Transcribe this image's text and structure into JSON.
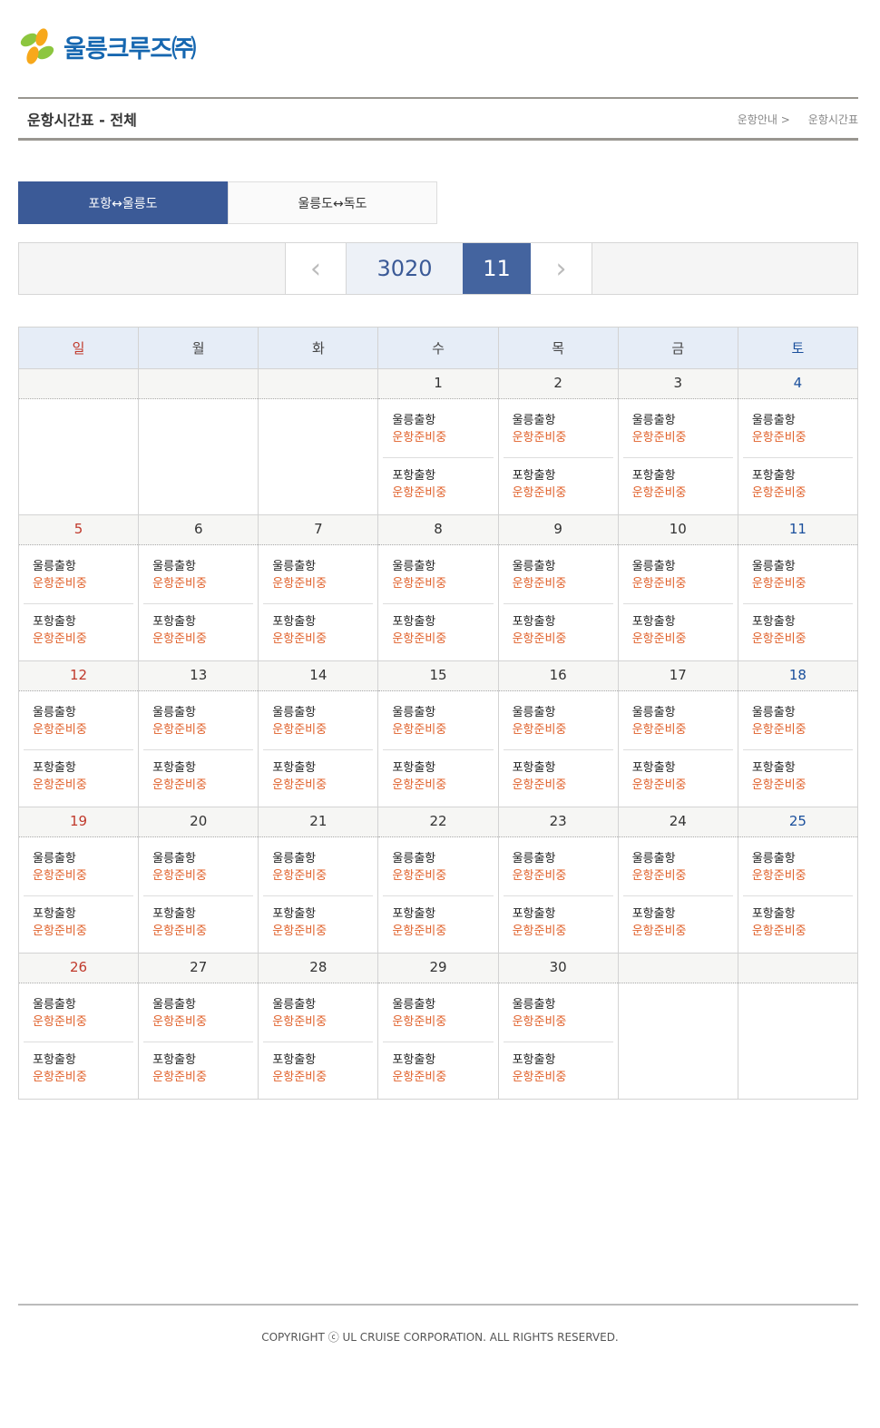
{
  "logo": {
    "text": "울릉크루즈㈜"
  },
  "title": "운항시간표 - 전체",
  "breadcrumb": [
    "운항안내 >",
    "운항시간표"
  ],
  "tabs": [
    {
      "label": "포항↔울릉도",
      "active": true
    },
    {
      "label": "울릉도↔독도",
      "active": false
    }
  ],
  "nav": {
    "prev_icon": "chevron-left-icon",
    "next_icon": "chevron-right-icon",
    "year": "3020",
    "month": "11"
  },
  "colors": {
    "accent": "#3b5a97",
    "sunday": "#c0392b",
    "saturday": "#1a4f9c",
    "status": "#e0602a"
  },
  "weekdays": [
    "일",
    "월",
    "화",
    "수",
    "목",
    "금",
    "토"
  ],
  "weeks": [
    [
      null,
      null,
      null,
      {
        "d": "1",
        "trips": [
          [
            "울릉출항",
            "운항준비중"
          ],
          [
            "포항출항",
            "운항준비중"
          ]
        ]
      },
      {
        "d": "2",
        "trips": [
          [
            "울릉출항",
            "운항준비중"
          ],
          [
            "포항출항",
            "운항준비중"
          ]
        ]
      },
      {
        "d": "3",
        "trips": [
          [
            "울릉출항",
            "운항준비중"
          ],
          [
            "포항출항",
            "운항준비중"
          ]
        ]
      },
      {
        "d": "4",
        "trips": [
          [
            "울릉출항",
            "운항준비중"
          ],
          [
            "포항출항",
            "운항준비중"
          ]
        ]
      }
    ],
    [
      {
        "d": "5",
        "trips": [
          [
            "울릉출항",
            "운항준비중"
          ],
          [
            "포항출항",
            "운항준비중"
          ]
        ]
      },
      {
        "d": "6",
        "trips": [
          [
            "울릉출항",
            "운항준비중"
          ],
          [
            "포항출항",
            "운항준비중"
          ]
        ]
      },
      {
        "d": "7",
        "trips": [
          [
            "울릉출항",
            "운항준비중"
          ],
          [
            "포항출항",
            "운항준비중"
          ]
        ]
      },
      {
        "d": "8",
        "trips": [
          [
            "울릉출항",
            "운항준비중"
          ],
          [
            "포항출항",
            "운항준비중"
          ]
        ]
      },
      {
        "d": "9",
        "trips": [
          [
            "울릉출항",
            "운항준비중"
          ],
          [
            "포항출항",
            "운항준비중"
          ]
        ]
      },
      {
        "d": "10",
        "trips": [
          [
            "울릉출항",
            "운항준비중"
          ],
          [
            "포항출항",
            "운항준비중"
          ]
        ]
      },
      {
        "d": "11",
        "trips": [
          [
            "울릉출항",
            "운항준비중"
          ],
          [
            "포항출항",
            "운항준비중"
          ]
        ]
      }
    ],
    [
      {
        "d": "12",
        "trips": [
          [
            "울릉출항",
            "운항준비중"
          ],
          [
            "포항출항",
            "운항준비중"
          ]
        ]
      },
      {
        "d": "13",
        "trips": [
          [
            "울릉출항",
            "운항준비중"
          ],
          [
            "포항출항",
            "운항준비중"
          ]
        ]
      },
      {
        "d": "14",
        "trips": [
          [
            "울릉출항",
            "운항준비중"
          ],
          [
            "포항출항",
            "운항준비중"
          ]
        ]
      },
      {
        "d": "15",
        "trips": [
          [
            "울릉출항",
            "운항준비중"
          ],
          [
            "포항출항",
            "운항준비중"
          ]
        ]
      },
      {
        "d": "16",
        "trips": [
          [
            "울릉출항",
            "운항준비중"
          ],
          [
            "포항출항",
            "운항준비중"
          ]
        ]
      },
      {
        "d": "17",
        "trips": [
          [
            "울릉출항",
            "운항준비중"
          ],
          [
            "포항출항",
            "운항준비중"
          ]
        ]
      },
      {
        "d": "18",
        "trips": [
          [
            "울릉출항",
            "운항준비중"
          ],
          [
            "포항출항",
            "운항준비중"
          ]
        ]
      }
    ],
    [
      {
        "d": "19",
        "trips": [
          [
            "울릉출항",
            "운항준비중"
          ],
          [
            "포항출항",
            "운항준비중"
          ]
        ]
      },
      {
        "d": "20",
        "trips": [
          [
            "울릉출항",
            "운항준비중"
          ],
          [
            "포항출항",
            "운항준비중"
          ]
        ]
      },
      {
        "d": "21",
        "trips": [
          [
            "울릉출항",
            "운항준비중"
          ],
          [
            "포항출항",
            "운항준비중"
          ]
        ]
      },
      {
        "d": "22",
        "trips": [
          [
            "울릉출항",
            "운항준비중"
          ],
          [
            "포항출항",
            "운항준비중"
          ]
        ]
      },
      {
        "d": "23",
        "trips": [
          [
            "울릉출항",
            "운항준비중"
          ],
          [
            "포항출항",
            "운항준비중"
          ]
        ]
      },
      {
        "d": "24",
        "trips": [
          [
            "울릉출항",
            "운항준비중"
          ],
          [
            "포항출항",
            "운항준비중"
          ]
        ]
      },
      {
        "d": "25",
        "trips": [
          [
            "울릉출항",
            "운항준비중"
          ],
          [
            "포항출항",
            "운항준비중"
          ]
        ]
      }
    ],
    [
      {
        "d": "26",
        "trips": [
          [
            "울릉출항",
            "운항준비중"
          ],
          [
            "포항출항",
            "운항준비중"
          ]
        ]
      },
      {
        "d": "27",
        "trips": [
          [
            "울릉출항",
            "운항준비중"
          ],
          [
            "포항출항",
            "운항준비중"
          ]
        ]
      },
      {
        "d": "28",
        "trips": [
          [
            "울릉출항",
            "운항준비중"
          ],
          [
            "포항출항",
            "운항준비중"
          ]
        ]
      },
      {
        "d": "29",
        "trips": [
          [
            "울릉출항",
            "운항준비중"
          ],
          [
            "포항출항",
            "운항준비중"
          ]
        ]
      },
      {
        "d": "30",
        "trips": [
          [
            "울릉출항",
            "운항준비중"
          ],
          [
            "포항출항",
            "운항준비중"
          ]
        ]
      },
      null,
      null
    ]
  ],
  "footer": {
    "copyright": "COPYRIGHT ⓒ UL CRUISE CORPORATION. ALL RIGHTS RESERVED."
  }
}
